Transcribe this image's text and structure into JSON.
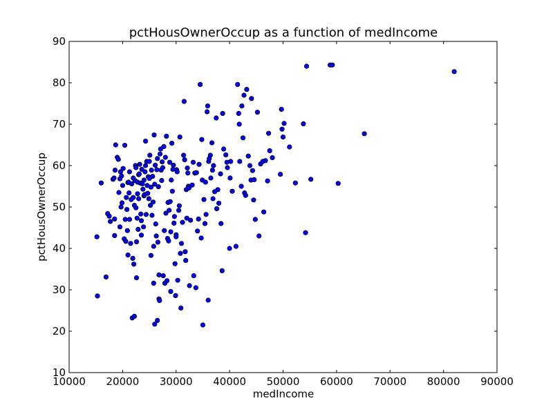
{
  "chart_data": {
    "type": "scatter",
    "title": "pctHousOwnerOccup as a function of medIncome",
    "xlabel": "medIncome",
    "ylabel": "pctHousOwnerOccup",
    "xlim": [
      10000,
      90000
    ],
    "ylim": [
      10,
      90
    ],
    "xticks": [
      10000,
      20000,
      30000,
      40000,
      50000,
      60000,
      70000,
      80000,
      90000
    ],
    "yticks": [
      10,
      20,
      30,
      40,
      50,
      60,
      70,
      80,
      90
    ],
    "grid": false,
    "marker_color": "#0000ff",
    "marker_edge_color": "#000000",
    "points": [
      [
        15200,
        42.8
      ],
      [
        15300,
        28.5
      ],
      [
        16000,
        55.8
      ],
      [
        16900,
        33.1
      ],
      [
        17200,
        48.4
      ],
      [
        17500,
        47.8
      ],
      [
        17700,
        46.5
      ],
      [
        18200,
        56.7
      ],
      [
        18400,
        57.0
      ],
      [
        18500,
        47.1
      ],
      [
        18500,
        43.1
      ],
      [
        18600,
        58.9
      ],
      [
        18700,
        65.0
      ],
      [
        19000,
        62.0
      ],
      [
        19200,
        61.5
      ],
      [
        19300,
        53.5
      ],
      [
        19500,
        56.8
      ],
      [
        19500,
        45.2
      ],
      [
        19600,
        58.5
      ],
      [
        19700,
        50.0
      ],
      [
        19800,
        57.5
      ],
      [
        19900,
        51.0
      ],
      [
        20000,
        55.2
      ],
      [
        20100,
        59.3
      ],
      [
        20300,
        42.3
      ],
      [
        20400,
        64.9
      ],
      [
        20500,
        47.0
      ],
      [
        20600,
        41.7
      ],
      [
        20700,
        52.3
      ],
      [
        20800,
        49.4
      ],
      [
        20900,
        44.3
      ],
      [
        21000,
        38.4
      ],
      [
        21000,
        55.9
      ],
      [
        21100,
        56.0
      ],
      [
        21200,
        53.4
      ],
      [
        21300,
        47.0
      ],
      [
        21300,
        58.5
      ],
      [
        21500,
        41.2
      ],
      [
        21600,
        51.8
      ],
      [
        21700,
        55.6
      ],
      [
        21800,
        23.2
      ],
      [
        21900,
        37.6
      ],
      [
        22000,
        57.0
      ],
      [
        22000,
        52.3
      ],
      [
        22100,
        36.2
      ],
      [
        22200,
        50.4
      ],
      [
        22200,
        23.6
      ],
      [
        22300,
        56.4
      ],
      [
        22400,
        60.0
      ],
      [
        22500,
        59.5
      ],
      [
        22500,
        49.8
      ],
      [
        22600,
        41.6
      ],
      [
        22600,
        32.9
      ],
      [
        22700,
        47.3
      ],
      [
        22800,
        56.0
      ],
      [
        22800,
        53.2
      ],
      [
        22900,
        44.6
      ],
      [
        23000,
        57.8
      ],
      [
        23000,
        52.0
      ],
      [
        23100,
        58.0
      ],
      [
        23200,
        60.3
      ],
      [
        23300,
        55.8
      ],
      [
        23400,
        48.3
      ],
      [
        23500,
        46.7
      ],
      [
        23500,
        43.2
      ],
      [
        23600,
        59.1
      ],
      [
        23700,
        55.6
      ],
      [
        23800,
        54.3
      ],
      [
        23900,
        45.2
      ],
      [
        24000,
        52.7
      ],
      [
        24000,
        56.5
      ],
      [
        24100,
        53.0
      ],
      [
        24200,
        58.5
      ],
      [
        24300,
        60.0
      ],
      [
        24300,
        65.9
      ],
      [
        24400,
        48.2
      ],
      [
        24500,
        61.0
      ],
      [
        24600,
        55.2
      ],
      [
        24700,
        53.3
      ],
      [
        24800,
        57.3
      ],
      [
        24900,
        52.0
      ],
      [
        25000,
        61.0
      ],
      [
        25000,
        56.9
      ],
      [
        25100,
        62.5
      ],
      [
        25200,
        50.4
      ],
      [
        25300,
        54.8
      ],
      [
        25300,
        38.3
      ],
      [
        25400,
        58.9
      ],
      [
        25500,
        48.0
      ],
      [
        25600,
        57.4
      ],
      [
        25700,
        51.2
      ],
      [
        25800,
        40.5
      ],
      [
        25800,
        31.6
      ],
      [
        25900,
        67.4
      ],
      [
        26000,
        55.5
      ],
      [
        26000,
        21.7
      ],
      [
        26100,
        60.1
      ],
      [
        26200,
        45.9
      ],
      [
        26300,
        43.0
      ],
      [
        26400,
        59.0
      ],
      [
        26500,
        61.7
      ],
      [
        26500,
        22.6
      ],
      [
        26600,
        41.5
      ],
      [
        26700,
        54.9
      ],
      [
        26800,
        27.8
      ],
      [
        26800,
        33.6
      ],
      [
        26900,
        27.4
      ],
      [
        27000,
        62.8
      ],
      [
        27100,
        64.0
      ],
      [
        27200,
        58.9
      ],
      [
        27300,
        56.4
      ],
      [
        27400,
        60.9
      ],
      [
        27500,
        59.5
      ],
      [
        27600,
        33.4
      ],
      [
        27700,
        64.6
      ],
      [
        27800,
        44.3
      ],
      [
        27900,
        31.6
      ],
      [
        28000,
        62.0
      ],
      [
        28100,
        48.5
      ],
      [
        28200,
        67.1
      ],
      [
        28300,
        32.2
      ],
      [
        28400,
        42.4
      ],
      [
        28500,
        51.1
      ],
      [
        28600,
        41.8
      ],
      [
        28700,
        49.2
      ],
      [
        28800,
        60.8
      ],
      [
        28900,
        51.3
      ],
      [
        29000,
        44.0
      ],
      [
        29000,
        29.6
      ],
      [
        29100,
        56.5
      ],
      [
        29200,
        65.4
      ],
      [
        29300,
        53.8
      ],
      [
        29400,
        59.1
      ],
      [
        29500,
        60.1
      ],
      [
        29600,
        46.1
      ],
      [
        29700,
        47.7
      ],
      [
        29800,
        36.3
      ],
      [
        29900,
        28.6
      ],
      [
        30000,
        43.3
      ],
      [
        30000,
        42.8
      ],
      [
        30100,
        59.0
      ],
      [
        30200,
        58.5
      ],
      [
        30300,
        32.3
      ],
      [
        30500,
        49.2
      ],
      [
        30600,
        50.3
      ],
      [
        30700,
        66.9
      ],
      [
        30800,
        38.8
      ],
      [
        30900,
        25.6
      ],
      [
        31000,
        41.2
      ],
      [
        31200,
        46.3
      ],
      [
        31400,
        62.5
      ],
      [
        31500,
        75.5
      ],
      [
        31600,
        61.4
      ],
      [
        31700,
        39.2
      ],
      [
        31800,
        37.1
      ],
      [
        31900,
        54.2
      ],
      [
        32000,
        47.3
      ],
      [
        32100,
        59.4
      ],
      [
        32200,
        58.2
      ],
      [
        32300,
        55.0
      ],
      [
        32400,
        54.6
      ],
      [
        32500,
        31.0
      ],
      [
        32700,
        46.8
      ],
      [
        33000,
        55.3
      ],
      [
        33200,
        60.8
      ],
      [
        33300,
        33.4
      ],
      [
        33500,
        58.2
      ],
      [
        33700,
        30.5
      ],
      [
        33800,
        58.3
      ],
      [
        34000,
        44.2
      ],
      [
        34200,
        47.1
      ],
      [
        34300,
        60.3
      ],
      [
        34500,
        79.6
      ],
      [
        34700,
        42.5
      ],
      [
        34800,
        66.3
      ],
      [
        34900,
        56.5
      ],
      [
        35000,
        21.5
      ],
      [
        35200,
        51.8
      ],
      [
        35400,
        46.0
      ],
      [
        35500,
        56.0
      ],
      [
        35600,
        48.2
      ],
      [
        35800,
        73.0
      ],
      [
        35900,
        74.4
      ],
      [
        36000,
        27.5
      ],
      [
        36100,
        61.0
      ],
      [
        36200,
        61.7
      ],
      [
        36400,
        62.5
      ],
      [
        36500,
        57.0
      ],
      [
        36700,
        65.5
      ],
      [
        36800,
        58.9
      ],
      [
        36900,
        52.0
      ],
      [
        37000,
        60.0
      ],
      [
        37200,
        53.7
      ],
      [
        37500,
        71.5
      ],
      [
        37600,
        49.6
      ],
      [
        37800,
        54.2
      ],
      [
        38000,
        50.9
      ],
      [
        38300,
        58.0
      ],
      [
        38400,
        46.0
      ],
      [
        38600,
        34.6
      ],
      [
        38700,
        72.6
      ],
      [
        38900,
        64.0
      ],
      [
        39300,
        62.6
      ],
      [
        39500,
        60.8
      ],
      [
        39600,
        59.5
      ],
      [
        40000,
        40.0
      ],
      [
        40100,
        57.0
      ],
      [
        40200,
        61.0
      ],
      [
        40500,
        53.8
      ],
      [
        41200,
        40.5
      ],
      [
        41500,
        79.6
      ],
      [
        41700,
        72.6
      ],
      [
        41800,
        70.0
      ],
      [
        41900,
        61.0
      ],
      [
        42200,
        55.0
      ],
      [
        42300,
        74.4
      ],
      [
        42500,
        66.7
      ],
      [
        42700,
        77.0
      ],
      [
        42800,
        53.4
      ],
      [
        43000,
        52.8
      ],
      [
        43200,
        78.4
      ],
      [
        43500,
        62.3
      ],
      [
        43800,
        60.0
      ],
      [
        44000,
        56.5
      ],
      [
        44100,
        76.2
      ],
      [
        44300,
        58.8
      ],
      [
        44500,
        51.7
      ],
      [
        44600,
        56.6
      ],
      [
        44800,
        47.0
      ],
      [
        45200,
        72.9
      ],
      [
        45500,
        43.0
      ],
      [
        45800,
        60.4
      ],
      [
        46200,
        61.0
      ],
      [
        46400,
        48.8
      ],
      [
        46700,
        61.2
      ],
      [
        47100,
        56.3
      ],
      [
        47300,
        67.8
      ],
      [
        47500,
        63.6
      ],
      [
        48000,
        61.9
      ],
      [
        49500,
        57.9
      ],
      [
        49700,
        73.6
      ],
      [
        49800,
        68.8
      ],
      [
        50000,
        66.9
      ],
      [
        50200,
        70.2
      ],
      [
        51200,
        64.5
      ],
      [
        52300,
        55.8
      ],
      [
        53800,
        70.1
      ],
      [
        54200,
        43.8
      ],
      [
        54400,
        84.0
      ],
      [
        55200,
        56.7
      ],
      [
        58800,
        84.3
      ],
      [
        59200,
        84.3
      ],
      [
        60300,
        55.7
      ],
      [
        65200,
        67.7
      ],
      [
        82000,
        82.7
      ]
    ]
  }
}
